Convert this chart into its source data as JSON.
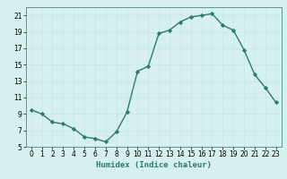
{
  "x": [
    0,
    1,
    2,
    3,
    4,
    5,
    6,
    7,
    8,
    9,
    10,
    11,
    12,
    13,
    14,
    15,
    16,
    17,
    18,
    19,
    20,
    21,
    22,
    23
  ],
  "y": [
    9.5,
    9.0,
    8.0,
    7.8,
    7.2,
    6.2,
    6.0,
    5.6,
    6.8,
    9.2,
    14.2,
    14.8,
    18.8,
    19.2,
    20.2,
    20.8,
    21.0,
    21.2,
    19.8,
    19.2,
    16.8,
    13.8,
    12.2,
    10.4
  ],
  "line_color": "#2d7a6e",
  "marker": "D",
  "marker_size": 2.2,
  "bg_color": "#d6f0f0",
  "grid_color": "#c8e8e8",
  "xlabel": "Humidex (Indice chaleur)",
  "xlim": [
    -0.5,
    23.5
  ],
  "ylim": [
    5,
    22
  ],
  "yticks": [
    5,
    7,
    9,
    11,
    13,
    15,
    17,
    19,
    21
  ],
  "xticks": [
    0,
    1,
    2,
    3,
    4,
    5,
    6,
    7,
    8,
    9,
    10,
    11,
    12,
    13,
    14,
    15,
    16,
    17,
    18,
    19,
    20,
    21,
    22,
    23
  ],
  "xlabel_fontsize": 6.5,
  "tick_fontsize": 5.5
}
